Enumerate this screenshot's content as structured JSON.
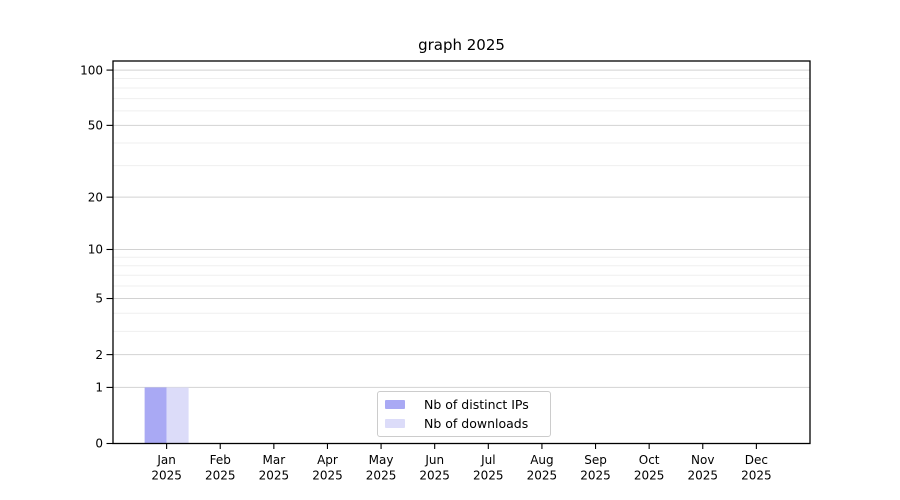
{
  "background": "#ffffff",
  "chart_data": {
    "type": "bar",
    "title": "graph 2025",
    "categories": [
      "Jan\n2025",
      "Feb\n2025",
      "Mar\n2025",
      "Apr\n2025",
      "May\n2025",
      "Jun\n2025",
      "Jul\n2025",
      "Aug\n2025",
      "Sep\n2025",
      "Oct\n2025",
      "Nov\n2025",
      "Dec\n2025"
    ],
    "series": [
      {
        "name": "Nb of distinct IPs",
        "color": "#a9a9f4",
        "values": [
          1,
          0,
          0,
          0,
          0,
          0,
          0,
          0,
          0,
          0,
          0,
          0
        ]
      },
      {
        "name": "Nb of downloads",
        "color": "#dcdcf9",
        "values": [
          1,
          0,
          0,
          0,
          0,
          0,
          0,
          0,
          0,
          0,
          0,
          0
        ]
      }
    ],
    "xlabel": "",
    "ylabel": "",
    "yscale": "log1p",
    "ylim": [
      0,
      112
    ],
    "yticks": [
      0,
      1,
      2,
      5,
      10,
      20,
      50,
      100
    ],
    "yticks_minor": [
      3,
      4,
      6,
      7,
      8,
      9,
      30,
      40,
      60,
      70,
      80,
      90
    ],
    "grid": "horizontal",
    "legend_position": "lower center"
  }
}
